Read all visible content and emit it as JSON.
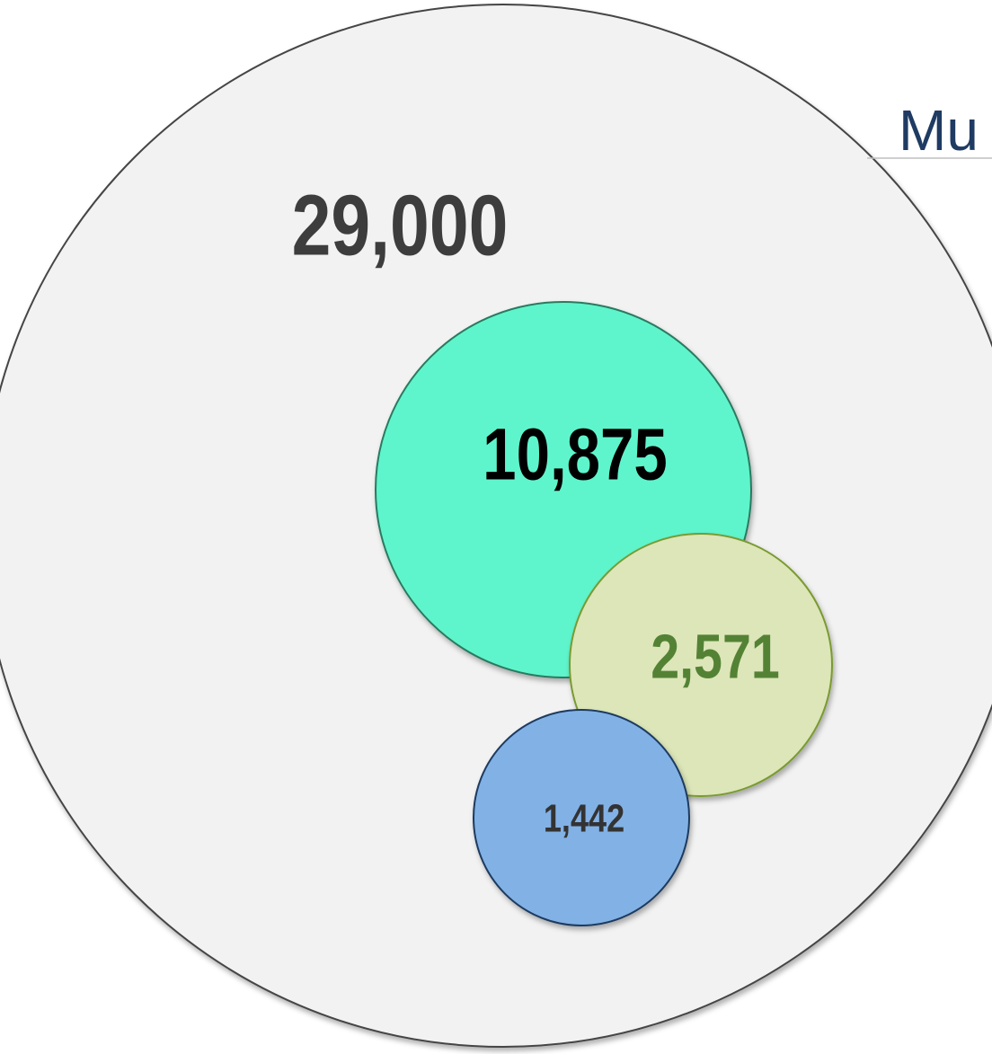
{
  "chart_data": {
    "type": "bubble",
    "title": "Mu",
    "values": [
      29000,
      10875,
      2571,
      1442
    ],
    "value_labels": [
      "29,000",
      "10,875",
      "2,571",
      "1,442"
    ],
    "colors": [
      "#f2f2f2",
      "#5ff5cc",
      "#dce6b8",
      "#82b1e5"
    ]
  }
}
